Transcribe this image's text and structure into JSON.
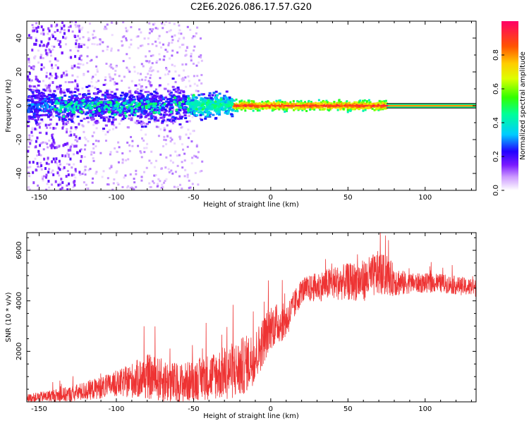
{
  "title": "C2E6.2026.086.17.57.G20",
  "spectrogram": {
    "type": "heatmap",
    "xlabel": "Height of straight line (km)",
    "ylabel": "Frequency (Hz)",
    "xlim": [
      -158,
      133
    ],
    "ylim": [
      -50,
      50
    ],
    "xticks": [
      -150,
      -100,
      -50,
      0,
      50,
      100
    ],
    "yticks": [
      -40,
      -20,
      0,
      20,
      40
    ],
    "colorbar": {
      "label": "Normalized spectral amplitude",
      "range": [
        0,
        1
      ],
      "ticks": [
        0.0,
        0.2,
        0.4,
        0.6,
        0.8
      ]
    },
    "track": {
      "description_free": true,
      "segments": [
        {
          "x_start": -158,
          "x_end": -55,
          "spread_hz": 8,
          "amplitude": 0.25
        },
        {
          "x_start": -55,
          "x_end": -25,
          "spread_hz": 5,
          "amplitude": 0.4
        },
        {
          "x_start": -25,
          "x_end": 75,
          "spread_hz": 2,
          "amplitude": 0.85
        },
        {
          "x_start": 75,
          "x_end": 133,
          "spread_hz": 1,
          "amplitude": 0.9
        }
      ]
    }
  },
  "snr": {
    "type": "line",
    "xlabel": "Height of straight line (km)",
    "ylabel": "SNR (10 * v/v)",
    "xlim": [
      -158,
      133
    ],
    "ylim": [
      0,
      6700
    ],
    "xticks": [
      -150,
      -100,
      -50,
      0,
      50,
      100
    ],
    "yticks": [
      2000,
      4000,
      6000
    ],
    "color": "#ee3333",
    "trend": [
      {
        "x": -158,
        "y": 150
      },
      {
        "x": -130,
        "y": 300
      },
      {
        "x": -100,
        "y": 700
      },
      {
        "x": -80,
        "y": 1000
      },
      {
        "x": -60,
        "y": 700
      },
      {
        "x": -40,
        "y": 1000
      },
      {
        "x": -20,
        "y": 1300
      },
      {
        "x": -10,
        "y": 1800
      },
      {
        "x": 0,
        "y": 3000
      },
      {
        "x": 10,
        "y": 3200
      },
      {
        "x": 20,
        "y": 4400
      },
      {
        "x": 40,
        "y": 4700
      },
      {
        "x": 60,
        "y": 4800
      },
      {
        "x": 70,
        "y": 5100
      },
      {
        "x": 85,
        "y": 4700
      },
      {
        "x": 110,
        "y": 4700
      },
      {
        "x": 133,
        "y": 4500
      }
    ],
    "noise": [
      {
        "x": -158,
        "amp": 150
      },
      {
        "x": -100,
        "amp": 500
      },
      {
        "x": -80,
        "amp": 900
      },
      {
        "x": -50,
        "amp": 800
      },
      {
        "x": -20,
        "amp": 1200
      },
      {
        "x": 0,
        "amp": 900
      },
      {
        "x": 20,
        "amp": 500
      },
      {
        "x": 70,
        "amp": 900
      },
      {
        "x": 90,
        "amp": 400
      },
      {
        "x": 133,
        "amp": 350
      }
    ]
  }
}
